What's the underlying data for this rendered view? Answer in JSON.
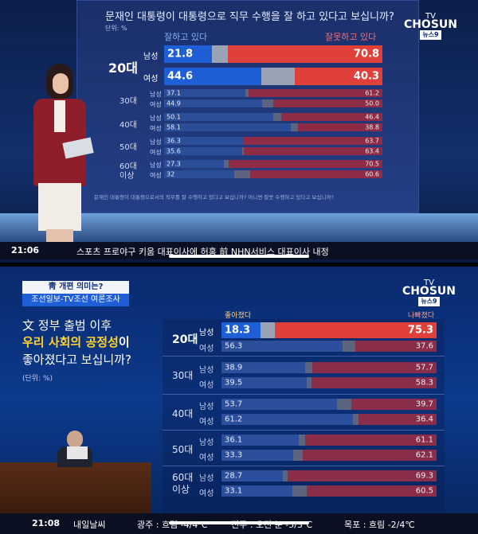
{
  "top": {
    "question": "문재인 대통령이 대통령으로 직무 수행을 잘 하고 있다고 보십니까?",
    "unit": "단위: %",
    "logo": {
      "line1": "TV",
      "line2": "CHOSUN",
      "badge": "뉴스9"
    },
    "header_left": "잘하고 있다",
    "header_right": "잘못하고 있다",
    "footnote": "문재인 대통령이 대통령으로서의 직무를 잘 수행하고 있다고 보십니까? 아니면 잘못 수행하고 있다고 보십니까?",
    "groups": [
      {
        "age": "20대",
        "rows": [
          {
            "sex": "남성",
            "good": 21.8,
            "bad": 70.8
          },
          {
            "sex": "여성",
            "good": 44.6,
            "bad": 40.3
          }
        ]
      },
      {
        "age": "30대",
        "rows": [
          {
            "sex": "남성",
            "good": 37.1,
            "bad": 61.2
          },
          {
            "sex": "여성",
            "good": 44.9,
            "bad": 50.0
          }
        ]
      },
      {
        "age": "40대",
        "rows": [
          {
            "sex": "남성",
            "good": 50.1,
            "bad": 46.4
          },
          {
            "sex": "여성",
            "good": 58.1,
            "bad": 38.8
          }
        ]
      },
      {
        "age": "50대",
        "rows": [
          {
            "sex": "남성",
            "good": 36.3,
            "bad": 63.7
          },
          {
            "sex": "여성",
            "good": 35.6,
            "bad": 63.4
          }
        ]
      },
      {
        "age": "60대",
        "age2": "이상",
        "rows": [
          {
            "sex": "남성",
            "good": 27.3,
            "bad": 70.5
          },
          {
            "sex": "여성",
            "good": 32,
            "bad": 60.6
          }
        ]
      }
    ],
    "ticker_time": "21:06",
    "ticker_text": "스포츠  프로야구 키움 대표이사에 허홍 前 NHN서비스 대표이사 내정"
  },
  "bottom": {
    "tag1": "靑 개편 의미는?",
    "tag2": "조선일보-TV조선 여론조사",
    "title_line1": "文 정부 출범 이후",
    "title_highlight": "우리 사회의 공정성",
    "title_suffix": "이",
    "title_line3": "좋아졌다고 보십니까?",
    "unit": "(단위: %)",
    "logo": {
      "line1": "TV",
      "line2": "CHOSUN",
      "badge": "뉴스9"
    },
    "header_left": "좋아졌다",
    "header_right": "나빠졌다",
    "groups": [
      {
        "age": "20대",
        "rows": [
          {
            "sex": "남성",
            "good": 18.3,
            "bad": 75.3
          },
          {
            "sex": "여성",
            "good": 56.3,
            "bad": 37.6
          }
        ]
      },
      {
        "age": "30대",
        "rows": [
          {
            "sex": "남성",
            "good": 38.9,
            "bad": 57.7
          },
          {
            "sex": "여성",
            "good": 39.5,
            "bad": 58.3
          }
        ]
      },
      {
        "age": "40대",
        "rows": [
          {
            "sex": "남성",
            "good": 53.7,
            "bad": 39.7
          },
          {
            "sex": "여성",
            "good": 61.2,
            "bad": 36.4
          }
        ]
      },
      {
        "age": "50대",
        "rows": [
          {
            "sex": "남성",
            "good": 36.1,
            "bad": 61.1
          },
          {
            "sex": "여성",
            "good": 33.3,
            "bad": 62.1
          }
        ]
      },
      {
        "age": "60대",
        "age2": "이상",
        "rows": [
          {
            "sex": "남성",
            "good": 28.7,
            "bad": 69.3
          },
          {
            "sex": "여성",
            "good": 33.1,
            "bad": 60.5
          }
        ]
      }
    ],
    "ticker_time": "21:08",
    "weather": [
      "내일날씨",
      "광주 : 흐림 -4/4℃",
      "전주 : 오전 눈 -5/3℃",
      "목포 : 흐림 -2/4℃"
    ]
  }
}
